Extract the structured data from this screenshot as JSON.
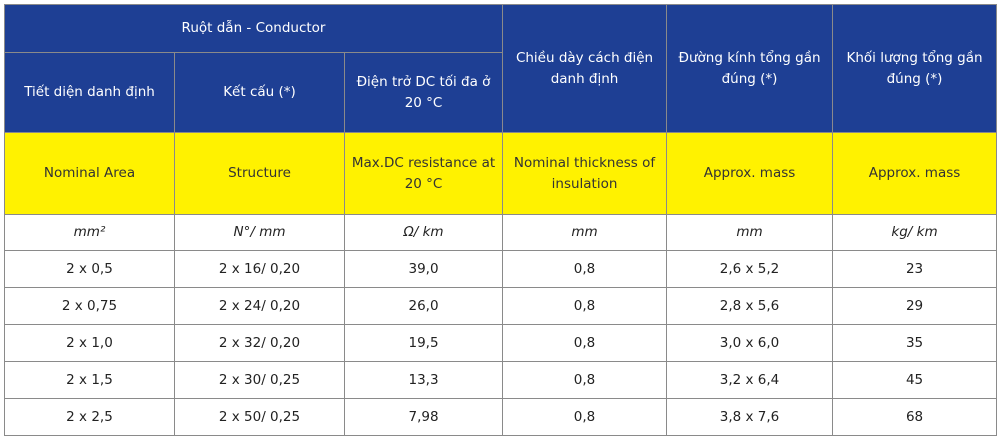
{
  "header": {
    "conductor_group": "Ruột dẫn - Conductor",
    "vi": {
      "nominal_area": "Tiết diện danh định",
      "structure": "Kết cấu (*)",
      "max_dc_resistance": "Điện trở DC tối đa ở 20 °C",
      "insulation_thickness": "Chiều dày cách điện danh định",
      "overall_diameter": "Đường kính tổng gần đúng (*)",
      "overall_mass": "Khối lượng tổng gần đúng (*)"
    },
    "en": {
      "nominal_area": "Nominal Area",
      "structure": "Structure",
      "max_dc_resistance": "Max.DC resistance at 20 °C",
      "insulation_thickness": "Nominal thickness of insulation",
      "overall_diameter": "Approx. mass",
      "overall_mass": "Approx. mass"
    },
    "units": {
      "nominal_area": "mm²",
      "structure": "N°/ mm",
      "max_dc_resistance": "Ω/ km",
      "insulation_thickness": "mm",
      "overall_diameter": "mm",
      "overall_mass": "kg/ km"
    }
  },
  "rows": [
    [
      "2 x 0,5",
      "2 x 16/ 0,20",
      "39,0",
      "0,8",
      "2,6 x 5,2",
      "23"
    ],
    [
      "2 x 0,75",
      "2 x 24/ 0,20",
      "26,0",
      "0,8",
      "2,8 x 5,6",
      "29"
    ],
    [
      "2 x 1,0",
      "2 x 32/ 0,20",
      "19,5",
      "0,8",
      "3,0 x 6,0",
      "35"
    ],
    [
      "2 x 1,5",
      "2 x 30/ 0,25",
      "13,3",
      "0,8",
      "3,2 x 6,4",
      "45"
    ],
    [
      "2 x 2,5",
      "2 x 50/ 0,25",
      "7,98",
      "0,8",
      "3,8 x 7,6",
      "68"
    ]
  ]
}
